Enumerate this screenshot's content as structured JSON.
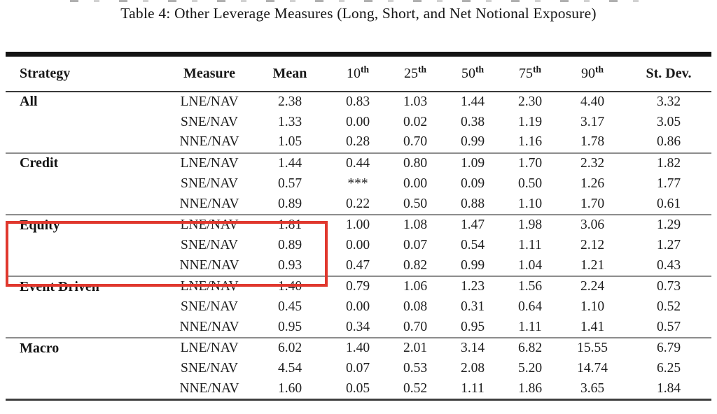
{
  "title": "Table 4: Other Leverage Measures (Long, Short, and Net Notional Exposure)",
  "table": {
    "columns": [
      {
        "label": "Strategy",
        "sup": ""
      },
      {
        "label": "Measure",
        "sup": ""
      },
      {
        "label": "Mean",
        "sup": ""
      },
      {
        "label": "10",
        "sup": "th"
      },
      {
        "label": "25",
        "sup": "th"
      },
      {
        "label": "50",
        "sup": "th"
      },
      {
        "label": "75",
        "sup": "th"
      },
      {
        "label": "90",
        "sup": "th"
      },
      {
        "label": "St. Dev.",
        "sup": ""
      }
    ],
    "sections": [
      {
        "strategy": "All",
        "rows": [
          {
            "measure": "LNE/NAV",
            "values": [
              "2.38",
              "0.83",
              "1.03",
              "1.44",
              "2.30",
              "4.40",
              "3.32"
            ]
          },
          {
            "measure": "SNE/NAV",
            "values": [
              "1.33",
              "0.00",
              "0.02",
              "0.38",
              "1.19",
              "3.17",
              "3.05"
            ]
          },
          {
            "measure": "NNE/NAV",
            "values": [
              "1.05",
              "0.28",
              "0.70",
              "0.99",
              "1.16",
              "1.78",
              "0.86"
            ]
          }
        ]
      },
      {
        "strategy": "Credit",
        "rows": [
          {
            "measure": "LNE/NAV",
            "values": [
              "1.44",
              "0.44",
              "0.80",
              "1.09",
              "1.70",
              "2.32",
              "1.82"
            ]
          },
          {
            "measure": "SNE/NAV",
            "values": [
              "0.57",
              "***",
              "0.00",
              "0.09",
              "0.50",
              "1.26",
              "1.77"
            ]
          },
          {
            "measure": "NNE/NAV",
            "values": [
              "0.89",
              "0.22",
              "0.50",
              "0.88",
              "1.10",
              "1.70",
              "0.61"
            ]
          }
        ]
      },
      {
        "strategy": "Equity",
        "highlighted": true,
        "rows": [
          {
            "measure": "LNE/NAV",
            "values": [
              "1.81",
              "1.00",
              "1.08",
              "1.47",
              "1.98",
              "3.06",
              "1.29"
            ]
          },
          {
            "measure": "SNE/NAV",
            "values": [
              "0.89",
              "0.00",
              "0.07",
              "0.54",
              "1.11",
              "2.12",
              "1.27"
            ]
          },
          {
            "measure": "NNE/NAV",
            "values": [
              "0.93",
              "0.47",
              "0.82",
              "0.99",
              "1.04",
              "1.21",
              "0.43"
            ]
          }
        ]
      },
      {
        "strategy": "Event Driven",
        "rows": [
          {
            "measure": "LNE/NAV",
            "values": [
              "1.40",
              "0.79",
              "1.06",
              "1.23",
              "1.56",
              "2.24",
              "0.73"
            ]
          },
          {
            "measure": "SNE/NAV",
            "values": [
              "0.45",
              "0.00",
              "0.08",
              "0.31",
              "0.64",
              "1.10",
              "0.52"
            ]
          },
          {
            "measure": "NNE/NAV",
            "values": [
              "0.95",
              "0.34",
              "0.70",
              "0.95",
              "1.11",
              "1.41",
              "0.57"
            ]
          }
        ]
      },
      {
        "strategy": "Macro",
        "rows": [
          {
            "measure": "LNE/NAV",
            "values": [
              "6.02",
              "1.40",
              "2.01",
              "3.14",
              "6.82",
              "15.55",
              "6.79"
            ]
          },
          {
            "measure": "SNE/NAV",
            "values": [
              "4.54",
              "0.07",
              "0.53",
              "2.08",
              "5.20",
              "14.74",
              "6.25"
            ]
          },
          {
            "measure": "NNE/NAV",
            "values": [
              "1.60",
              "0.05",
              "0.52",
              "1.11",
              "1.86",
              "3.65",
              "1.84"
            ]
          }
        ]
      }
    ]
  },
  "annotation": {
    "type": "highlight-box",
    "color": "#e0382e",
    "highlighted_strategy": "Equity",
    "covers_columns": "Strategy, Measure, Mean"
  },
  "colors": {
    "background": "#ffffff",
    "text": "#1b1b1b",
    "rule_heavy": "#141414",
    "rule_medium": "#3a3a3a",
    "rule_section": "#8d8d8d"
  }
}
